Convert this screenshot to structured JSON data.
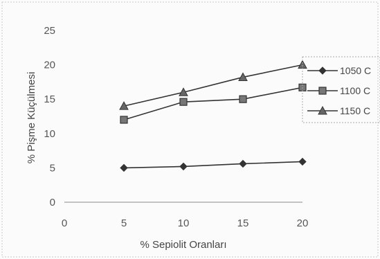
{
  "chart_data": {
    "type": "line",
    "xlabel": "% Sepiolit Oranları",
    "ylabel": "% Pişme Küçülmesi",
    "x": [
      5,
      10,
      15,
      20
    ],
    "xlim": [
      0,
      20
    ],
    "ylim": [
      0,
      25
    ],
    "x_ticks": [
      "0",
      "5",
      "10",
      "15",
      "20"
    ],
    "y_ticks": [
      "0",
      "5",
      "10",
      "15",
      "20",
      "25"
    ],
    "grid": false,
    "legend_position": "right",
    "series": [
      {
        "name": "1050 C",
        "marker": "diamond",
        "values": [
          5.0,
          5.2,
          5.6,
          5.9
        ]
      },
      {
        "name": "1100 C",
        "marker": "square",
        "values": [
          12.0,
          14.6,
          15.0,
          16.7
        ]
      },
      {
        "name": "1150 C",
        "marker": "triangle",
        "values": [
          14.0,
          16.0,
          18.2,
          20.0
        ]
      }
    ],
    "colors": {
      "line": "#333333",
      "axis": "#888888",
      "border": "#bbbbbb"
    }
  }
}
